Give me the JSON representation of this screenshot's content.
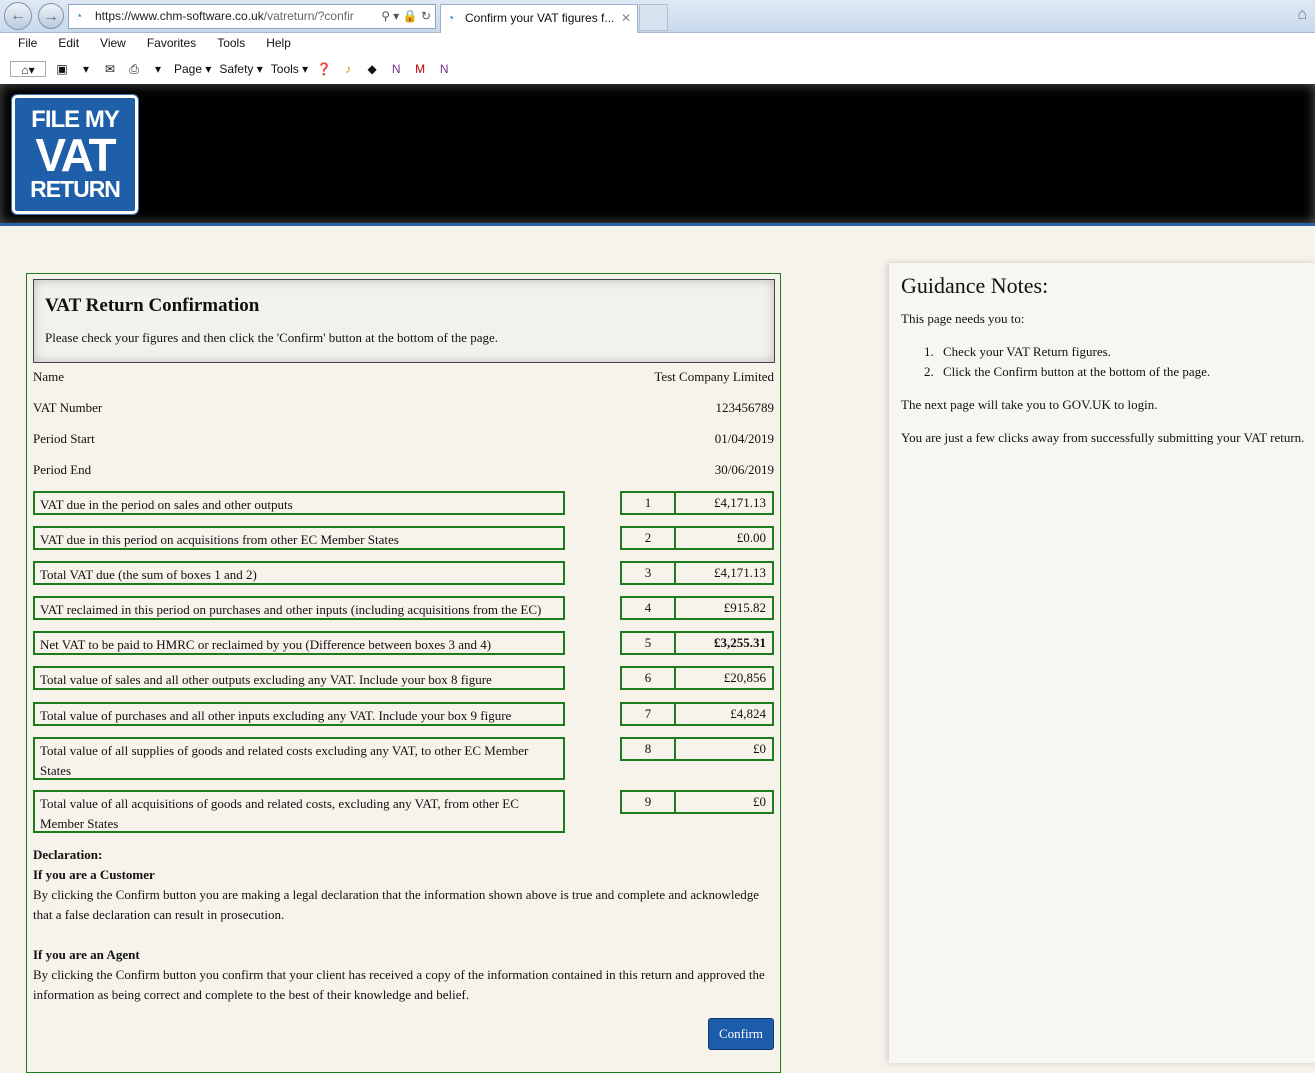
{
  "browser": {
    "url_host": "https://www.chm-software.co.uk",
    "url_path": "/vatreturn/?confir",
    "tab_title": "Confirm your VAT figures f...",
    "menu": [
      "File",
      "Edit",
      "View",
      "Favorites",
      "Tools",
      "Help"
    ],
    "commands": {
      "page": "Page ▾",
      "safety": "Safety ▾",
      "tools": "Tools ▾"
    }
  },
  "logo": {
    "line1": "FILE MY",
    "line2": "VAT",
    "line3": "RETURN"
  },
  "main": {
    "title": "VAT Return Confirmation",
    "subtitle": "Please check your figures and then click the 'Confirm' button at the bottom of the page.",
    "info": [
      {
        "label": "Name",
        "value": "Test Company Limited"
      },
      {
        "label": "VAT Number",
        "value": "123456789"
      },
      {
        "label": "Period Start",
        "value": "01/04/2019"
      },
      {
        "label": "Period End",
        "value": "30/06/2019"
      }
    ],
    "boxes": [
      {
        "label": "VAT due in the period on sales and other outputs",
        "num": "1",
        "value": "£4,171.13"
      },
      {
        "label": "VAT due in this period on acquisitions from other EC Member States",
        "num": "2",
        "value": "£0.00"
      },
      {
        "label": "Total VAT due (the sum of boxes 1 and 2)",
        "num": "3",
        "value": "£4,171.13"
      },
      {
        "label": "VAT reclaimed in this period on purchases and other inputs (including acquisitions from the EC)",
        "num": "4",
        "value": "£915.82"
      },
      {
        "label": "Net VAT to be paid to HMRC or reclaimed by you (Difference between boxes 3 and 4)",
        "num": "5",
        "value": "£3,255.31",
        "bold": true
      },
      {
        "label": "Total value of sales and all other outputs excluding any VAT. Include your box 8 figure",
        "num": "6",
        "value": "£20,856"
      },
      {
        "label": "Total value of purchases and all other inputs excluding any VAT. Include your box 9 figure",
        "num": "7",
        "value": "£4,824"
      },
      {
        "label": "Total value of all supplies of goods and related costs excluding any VAT, to other EC Member States",
        "num": "8",
        "value": "£0"
      },
      {
        "label": "Total value of all acquisitions of goods and related costs, excluding any VAT, from other EC Member States",
        "num": "9",
        "value": "£0"
      }
    ],
    "declaration": {
      "heading": "Declaration:",
      "customer_heading": "If you are a Customer",
      "customer_text": "By clicking the Confirm button you are making a legal declaration that the information shown above is true and complete and acknowledge that a false declaration can result in prosecution.",
      "agent_heading": "If you are an Agent",
      "agent_text": "By clicking the Confirm button you confirm that your client has received a copy of the information contained in this return and approved the information as being correct and complete to the best of their knowledge and belief."
    },
    "confirm_label": "Confirm"
  },
  "guidance": {
    "title": "Guidance Notes:",
    "intro": "This page needs you to:",
    "steps": [
      "Check your VAT Return figures.",
      "Click the Confirm button at the bottom of the page."
    ],
    "next": "The next page will take you to GOV.UK to login.",
    "closing": "You are just a few clicks away from successfully submitting your VAT return."
  },
  "colors": {
    "green_border": "#1d7a1d",
    "button_blue": "#1c5cab",
    "header_black": "#000000",
    "logo_blue": "#1f5ea8"
  }
}
